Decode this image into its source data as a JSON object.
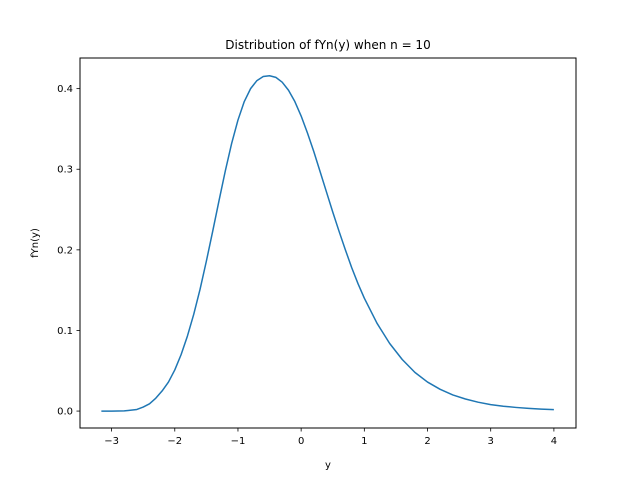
{
  "chart_data": {
    "type": "line",
    "title": "Distribution of fYn(y) when n = 10",
    "xlabel": "y",
    "ylabel": "fYn(y)",
    "xlim": [
      -3.5,
      4.35
    ],
    "ylim": [
      -0.021,
      0.438
    ],
    "xticks": [
      -3,
      -2,
      -1,
      0,
      1,
      2,
      3,
      4
    ],
    "xtick_labels": [
      "−3",
      "−2",
      "−1",
      "0",
      "1",
      "2",
      "3",
      "4"
    ],
    "yticks": [
      0.0,
      0.1,
      0.2,
      0.3,
      0.4
    ],
    "ytick_labels": [
      "0.0",
      "0.1",
      "0.2",
      "0.3",
      "0.4"
    ],
    "grid": false,
    "series": [
      {
        "color": "#1f77b4",
        "x": [
          -3.162,
          -3.0,
          -2.8,
          -2.6,
          -2.5,
          -2.4,
          -2.3,
          -2.2,
          -2.1,
          -2.0,
          -1.9,
          -1.8,
          -1.7,
          -1.6,
          -1.5,
          -1.4,
          -1.3,
          -1.2,
          -1.1,
          -1.0,
          -0.9,
          -0.8,
          -0.7,
          -0.6,
          -0.5,
          -0.4,
          -0.3,
          -0.2,
          -0.1,
          0.0,
          0.1,
          0.2,
          0.3,
          0.4,
          0.5,
          0.6,
          0.7,
          0.8,
          0.9,
          1.0,
          1.2,
          1.4,
          1.6,
          1.8,
          2.0,
          2.2,
          2.4,
          2.6,
          2.8,
          3.0,
          3.2,
          3.4,
          3.6,
          3.8,
          4.0
        ],
        "y": [
          0.0,
          0.0,
          0.0002,
          0.002,
          0.005,
          0.009,
          0.016,
          0.025,
          0.036,
          0.051,
          0.07,
          0.093,
          0.12,
          0.151,
          0.186,
          0.223,
          0.261,
          0.298,
          0.332,
          0.361,
          0.384,
          0.4,
          0.41,
          0.415,
          0.416,
          0.414,
          0.408,
          0.398,
          0.384,
          0.366,
          0.345,
          0.322,
          0.297,
          0.272,
          0.247,
          0.223,
          0.2,
          0.178,
          0.158,
          0.14,
          0.109,
          0.084,
          0.064,
          0.048,
          0.036,
          0.027,
          0.02,
          0.015,
          0.011,
          0.008,
          0.006,
          0.0045,
          0.0033,
          0.0024,
          0.0018
        ]
      }
    ]
  }
}
